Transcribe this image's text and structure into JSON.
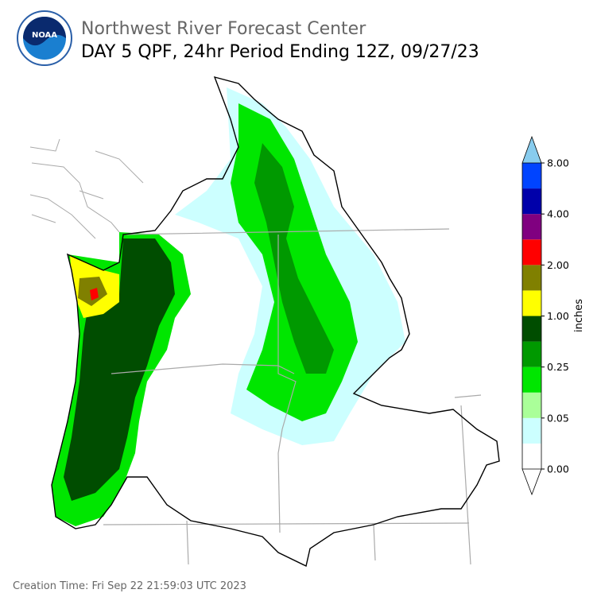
{
  "header": {
    "logo": "NOAA",
    "title": "Northwest River Forecast Center",
    "subtitle": "DAY 5 QPF, 24hr Period Ending 12Z, 09/27/23"
  },
  "colorbar": {
    "label": "inches",
    "ticks": [
      "0.00",
      "0.05",
      "0.25",
      "1.00",
      "2.00",
      "4.00",
      "8.00"
    ],
    "colors": [
      "#ffffff",
      "#ccffff",
      "#aaff99",
      "#00e600",
      "#009900",
      "#004d00",
      "#ffff00",
      "#808000",
      "#ff0000",
      "#800080",
      "#0000aa",
      "#0044ff"
    ],
    "over_color": "#88ccee"
  },
  "footer": {
    "creation_time": "Creation Time: Fri Sep 22 21:59:03 UTC 2023"
  }
}
